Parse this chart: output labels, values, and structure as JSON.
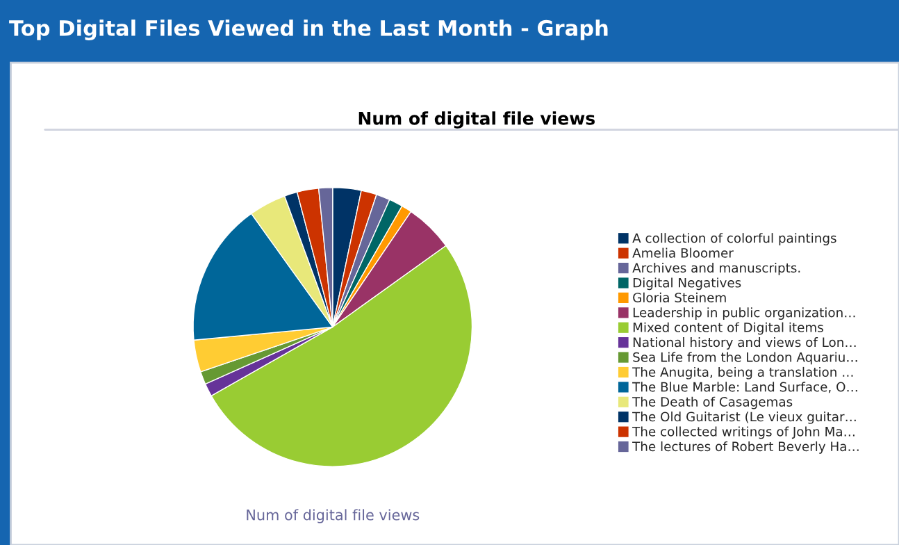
{
  "chart_data": {
    "type": "pie",
    "title": "Top Digital Files Viewed in the Last Month - Graph",
    "subtitle": "Num of digital file views",
    "xlabel": "Num of digital file views",
    "categories": [
      "A collection of colorful paintings",
      "Amelia Bloomer",
      "Archives and manuscripts.",
      "Digital Negatives",
      "Gloria Steinem",
      "Leadership in public organization…",
      "Mixed content of Digital items",
      "National history and views of Lon…",
      "Sea Life from the London Aquariu…",
      "The Anugita, being a translation …",
      "The Blue Marble: Land Surface, O…",
      "The Death of Casagemas",
      "The Old Guitarist (Le vieux guitar…",
      "The collected writings of John Ma…",
      "The lectures of Robert Beverly Ha…"
    ],
    "values": [
      3.3,
      1.8,
      1.6,
      1.6,
      1.2,
      5.6,
      51.7,
      1.5,
      1.5,
      3.7,
      16.6,
      4.3,
      1.5,
      2.5,
      1.6
    ],
    "colors": [
      "#003366",
      "#cc3300",
      "#666699",
      "#006666",
      "#ff9900",
      "#993366",
      "#99cc33",
      "#663399",
      "#669933",
      "#ffcc33",
      "#006699",
      "#e8e87a",
      "#003366",
      "#cc3300",
      "#666699"
    ],
    "legend": "right"
  }
}
